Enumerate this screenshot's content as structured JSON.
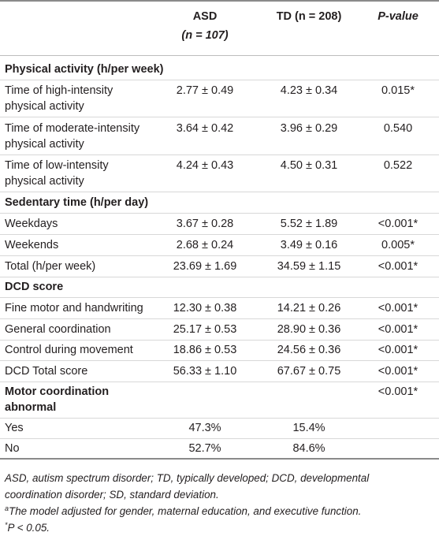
{
  "header": {
    "asd": "ASD",
    "asd_n": "(n = 107)",
    "td": "TD (n = 208)",
    "p": "P-value"
  },
  "sections": {
    "physical": "Physical activity (h/per week)",
    "sedentary": "Sedentary time (h/per day)",
    "dcd": "DCD score",
    "motor_line1": "Motor coordination",
    "motor_line2": "abnormal",
    "motor_p": "<0.001*"
  },
  "rows": [
    {
      "label1": "Time of high-intensity",
      "label2": "physical activity",
      "asd": "2.77 ± 0.49",
      "td": "4.23 ± 0.34",
      "p": "0.015*"
    },
    {
      "label1": "Time of moderate-intensity",
      "label2": "physical activity",
      "asd": "3.64 ± 0.42",
      "td": "3.96 ± 0.29",
      "p": "0.540"
    },
    {
      "label1": "Time of low-intensity",
      "label2": "physical activity",
      "asd": "4.24 ± 0.43",
      "td": "4.50 ± 0.31",
      "p": "0.522"
    },
    {
      "label1": "Weekdays",
      "asd": "3.67 ± 0.28",
      "td": "5.52 ± 1.89",
      "p": "<0.001*"
    },
    {
      "label1": "Weekends",
      "asd": "2.68 ± 0.24",
      "td": "3.49 ± 0.16",
      "p": "0.005*"
    },
    {
      "label1": "Total (h/per week)",
      "asd": "23.69 ± 1.69",
      "td": "34.59 ± 1.15",
      "p": "<0.001*"
    },
    {
      "label1": "Fine motor and handwriting",
      "asd": "12.30 ± 0.38",
      "td": "14.21 ± 0.26",
      "p": "<0.001*"
    },
    {
      "label1": "General coordination",
      "asd": "25.17 ± 0.53",
      "td": "28.90 ± 0.36",
      "p": "<0.001*"
    },
    {
      "label1": "Control during movement",
      "asd": "18.86 ± 0.53",
      "td": "24.56 ± 0.36",
      "p": "<0.001*"
    },
    {
      "label1": "DCD Total score",
      "asd": "56.33 ± 1.10",
      "td": "67.67 ± 0.75",
      "p": "<0.001*"
    },
    {
      "label1": "Yes",
      "asd": "47.3%",
      "td": "15.4%"
    },
    {
      "label1": "No",
      "asd": "52.7%",
      "td": "84.6%"
    }
  ],
  "footnotes": {
    "abbrev1": "ASD, autism spectrum disorder; TD, typically developed; DCD, developmental",
    "abbrev2": "coordination disorder; SD, standard deviation.",
    "model_mark": "a",
    "model": "The model adjusted for gender, maternal education, and executive function.",
    "sig_mark": "*",
    "sig": "P < 0.05."
  }
}
